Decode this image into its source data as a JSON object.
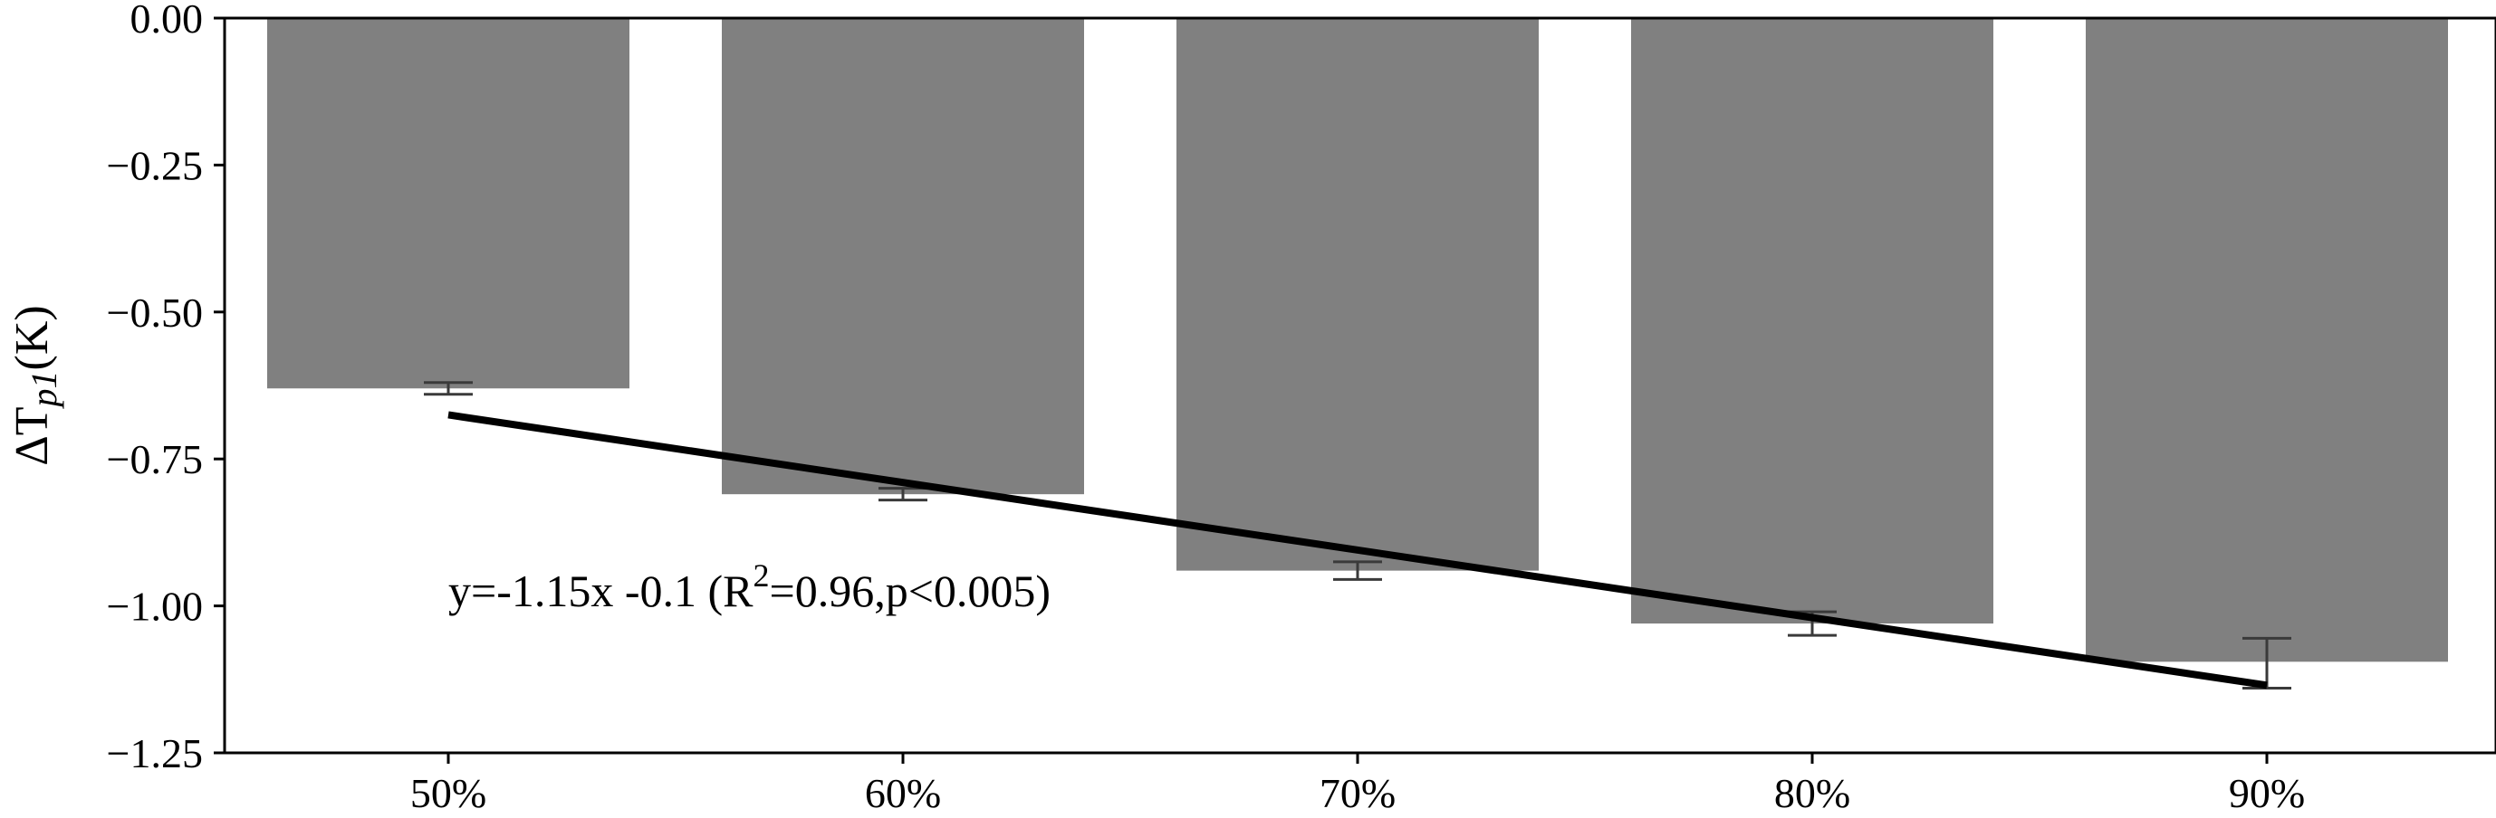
{
  "chart_data": {
    "type": "bar",
    "categories": [
      "50%",
      "60%",
      "70%",
      "80%",
      "90%"
    ],
    "values": [
      -0.63,
      -0.81,
      -0.94,
      -1.03,
      -1.095
    ],
    "error_bars": [
      [
        -0.64,
        -0.62
      ],
      [
        -0.82,
        -0.8
      ],
      [
        -0.955,
        -0.925
      ],
      [
        -1.05,
        -1.01
      ],
      [
        -1.14,
        -1.055
      ]
    ],
    "trendline": {
      "x": [
        0.5,
        0.9
      ],
      "y": [
        -0.675,
        -1.135
      ],
      "label_main": "y=-1.15x -0.1 (R",
      "label_sup": "2",
      "label_rest": "=0.96,p<0.005)"
    },
    "ylabel_main": "ΔT",
    "ylabel_sub": "p1",
    "ylabel_unit": "(K)",
    "ylim": [
      -1.25,
      0.0
    ],
    "yticks": [
      "0.00",
      "−0.25",
      "−0.50",
      "−0.75",
      "−1.00",
      "−1.25"
    ],
    "ytick_values": [
      0.0,
      -0.25,
      -0.5,
      -0.75,
      -1.0,
      -1.25
    ],
    "grid": false,
    "colors": {
      "bar": "#808080",
      "errorbar": "#3a3a3a",
      "trendline": "#000000"
    }
  }
}
